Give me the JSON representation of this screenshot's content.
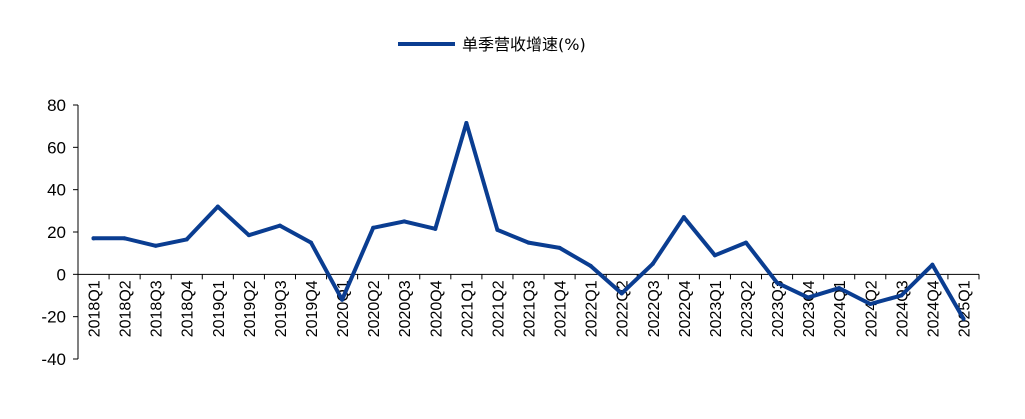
{
  "chart_data": {
    "type": "line",
    "title": "",
    "xlabel": "",
    "ylabel": "",
    "ylim": [
      -40,
      80
    ],
    "yticks": [
      80,
      60,
      40,
      20,
      0,
      -20,
      -40
    ],
    "grid": false,
    "legend_position": "top-center",
    "categories": [
      "2018Q1",
      "2018Q2",
      "2018Q3",
      "2018Q4",
      "2019Q1",
      "2019Q2",
      "2019Q3",
      "2019Q4",
      "2020Q1",
      "2020Q2",
      "2020Q3",
      "2020Q4",
      "2021Q1",
      "2021Q2",
      "2021Q3",
      "2021Q4",
      "2022Q1",
      "2022Q2",
      "2022Q3",
      "2022Q4",
      "2023Q1",
      "2023Q2",
      "2023Q3",
      "2023Q4",
      "2024Q1",
      "2024Q2",
      "2024Q3",
      "2024Q4",
      "2025Q1"
    ],
    "series": [
      {
        "name": "单季营收增速(%)",
        "color": "#0a3d91",
        "values": [
          17,
          17,
          13.5,
          16.5,
          32,
          18.5,
          23,
          15,
          -12,
          22,
          25,
          21.5,
          71.5,
          21,
          15,
          12.5,
          4,
          -9,
          5,
          27,
          9,
          15,
          -4,
          -11,
          -6.5,
          -14,
          -10,
          4.5,
          -21
        ]
      }
    ]
  }
}
